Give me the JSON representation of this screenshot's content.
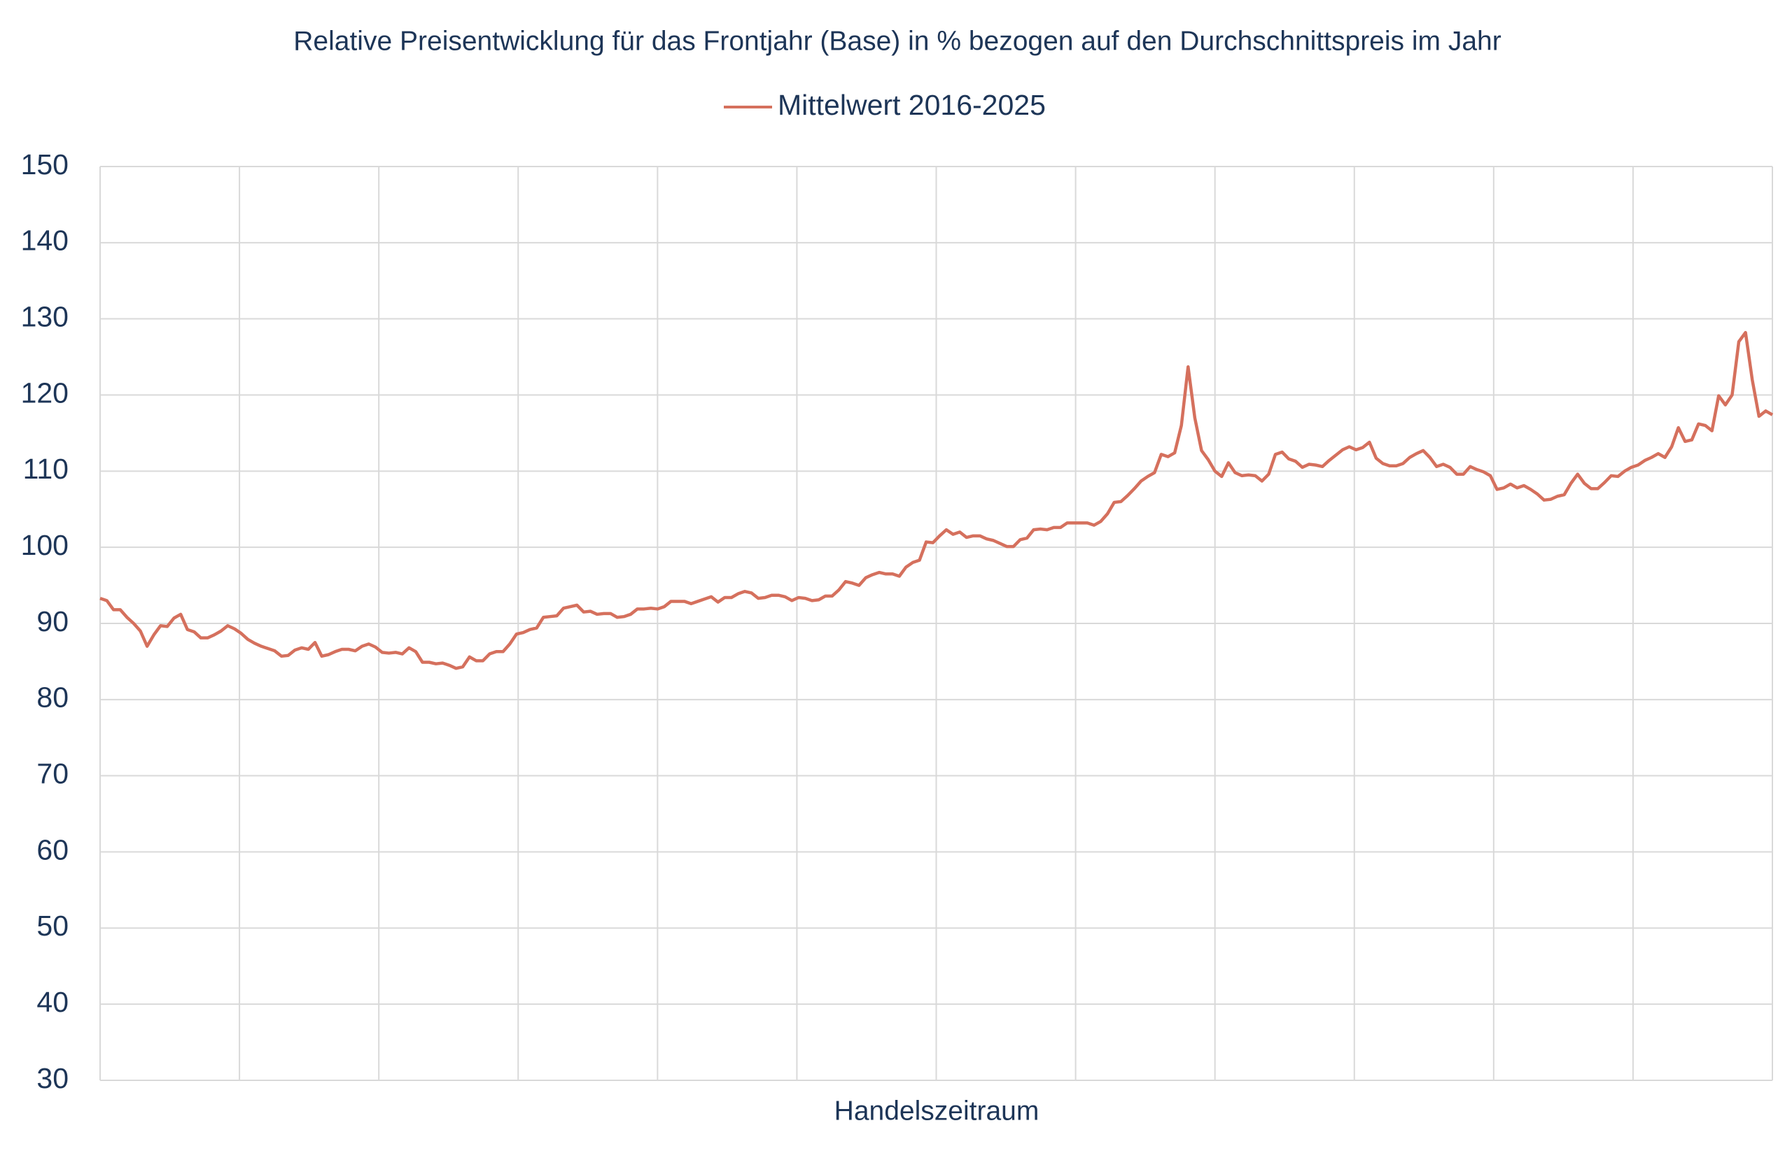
{
  "chart_data": {
    "type": "line",
    "title": "Relative Preisentwicklung für das Frontjahr (Base) in % bezogen auf den Durchschnittspreis im Jahr",
    "x_label": "Handelszeitraum",
    "ylim": [
      30,
      150
    ],
    "yticks": [
      30,
      40,
      50,
      60,
      70,
      80,
      90,
      100,
      110,
      120,
      130,
      140,
      150
    ],
    "grid": true,
    "legend": "top",
    "series": [
      {
        "name": "Mittelwert 2016-2025",
        "color": "#d5705d",
        "values": [
          93.3,
          93,
          91.8,
          91.8,
          90.8,
          90,
          89,
          87,
          88.5,
          89.7,
          89.6,
          90.7,
          91.2,
          89.2,
          88.9,
          88.1,
          88.1,
          88.5,
          89,
          89.7,
          89.3,
          88.7,
          87.9,
          87.4,
          87,
          86.7,
          86.4,
          85.7,
          85.8,
          86.5,
          86.8,
          86.6,
          87.5,
          85.7,
          85.9,
          86.3,
          86.6,
          86.6,
          86.4,
          87,
          87.3,
          86.9,
          86.2,
          86.1,
          86.2,
          86,
          86.8,
          86.3,
          84.9,
          84.9,
          84.7,
          84.8,
          84.5,
          84.1,
          84.3,
          85.6,
          85.1,
          85.1,
          86,
          86.3,
          86.3,
          87.3,
          88.6,
          88.8,
          89.2,
          89.4,
          90.8,
          90.9,
          91,
          92,
          92.2,
          92.4,
          91.5,
          91.6,
          91.2,
          91.3,
          91.3,
          90.8,
          90.9,
          91.2,
          91.9,
          91.9,
          92,
          91.9,
          92.2,
          92.9,
          92.9,
          92.9,
          92.6,
          92.9,
          93.2,
          93.5,
          92.8,
          93.4,
          93.4,
          93.9,
          94.2,
          94,
          93.3,
          93.4,
          93.7,
          93.7,
          93.5,
          93,
          93.4,
          93.3,
          93,
          93.1,
          93.6,
          93.6,
          94.4,
          95.5,
          95.3,
          95,
          96,
          96.4,
          96.7,
          96.5,
          96.5,
          96.2,
          97.4,
          98,
          98.3,
          100.7,
          100.6,
          101.5,
          102.3,
          101.7,
          102,
          101.3,
          101.5,
          101.5,
          101.1,
          100.9,
          100.5,
          100.1,
          100.1,
          101,
          101.2,
          102.3,
          102.4,
          102.3,
          102.6,
          102.6,
          103.2,
          103.2,
          103.2,
          103.2,
          102.9,
          103.4,
          104.4,
          105.9,
          106,
          106.8,
          107.7,
          108.7,
          109.3,
          109.8,
          112.2,
          111.9,
          112.4,
          116,
          123.7,
          117,
          112.7,
          111.5,
          110,
          109.3,
          111.1,
          109.8,
          109.4,
          109.5,
          109.4,
          108.7,
          109.6,
          112.2,
          112.5,
          111.6,
          111.3,
          110.5,
          110.9,
          110.8,
          110.6,
          111.4,
          112.1,
          112.8,
          113.2,
          112.8,
          113.1,
          113.8,
          111.7,
          111,
          110.7,
          110.7,
          111,
          111.8,
          112.3,
          112.7,
          111.8,
          110.6,
          110.9,
          110.5,
          109.6,
          109.6,
          110.6,
          110.2,
          109.9,
          109.4,
          107.6,
          107.8,
          108.3,
          107.8,
          108.1,
          107.6,
          107,
          106.2,
          106.3,
          106.7,
          106.9,
          108.4,
          109.6,
          108.4,
          107.7,
          107.7,
          108.5,
          109.4,
          109.3,
          110,
          110.5,
          110.8,
          111.4,
          111.8,
          112.3,
          111.8,
          113.2,
          115.7,
          113.9,
          114.1,
          116.2,
          116,
          115.3,
          119.9,
          118.7,
          120,
          127,
          128.2,
          122,
          117.2,
          117.9,
          117.4
        ]
      }
    ]
  }
}
